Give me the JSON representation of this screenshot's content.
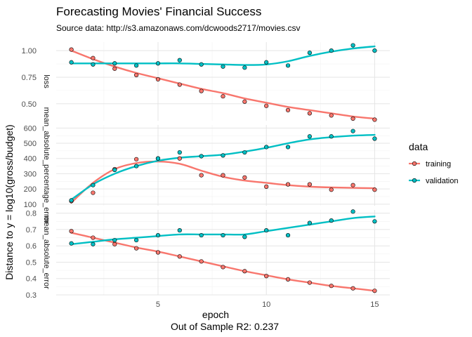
{
  "chart_data": {
    "type": "line",
    "title": "Forecasting Movies' Financial Success",
    "subtitle": "Source data: http://s3.amazonaws.com/dcwoods2717/movies.csv",
    "xlabel": "epoch",
    "caption": "Out of Sample R2: 0.237",
    "ylabel": "Distance to y = log10(gross/budget)",
    "legend_title": "data",
    "legend_position": "right",
    "grid": true,
    "colors": {
      "training": "#F8766D",
      "validation": "#00BFC4"
    },
    "x": [
      1,
      2,
      3,
      4,
      5,
      6,
      7,
      8,
      9,
      10,
      11,
      12,
      13,
      14,
      15
    ],
    "xlim": [
      0.3,
      15.7
    ],
    "xticks": [
      5,
      10,
      15
    ],
    "xtick_labels": [
      "5",
      "10",
      "15"
    ],
    "panels": [
      {
        "strip": "loss",
        "ylim": [
          0.34,
          1.08
        ],
        "yticks": [
          0.5,
          0.75,
          1.0
        ],
        "ytick_labels": [
          "0.50",
          "0.75",
          "1.00"
        ],
        "series": [
          {
            "name": "training",
            "values": [
              1.01,
              0.93,
              0.83,
              0.77,
              0.73,
              0.68,
              0.62,
              0.57,
              0.52,
              0.48,
              0.44,
              0.41,
              0.39,
              0.36,
              0.35
            ],
            "smooth": [
              1.0,
              0.92,
              0.85,
              0.79,
              0.74,
              0.69,
              0.64,
              0.6,
              0.55,
              0.51,
              0.47,
              0.44,
              0.41,
              0.38,
              0.36
            ]
          },
          {
            "name": "validation",
            "values": [
              0.89,
              0.87,
              0.88,
              0.86,
              0.88,
              0.91,
              0.87,
              0.85,
              0.84,
              0.89,
              0.86,
              0.98,
              1.0,
              1.05,
              1.0
            ],
            "smooth": [
              0.88,
              0.88,
              0.88,
              0.88,
              0.88,
              0.88,
              0.875,
              0.87,
              0.865,
              0.87,
              0.9,
              0.95,
              0.99,
              1.02,
              1.04
            ]
          }
        ]
      },
      {
        "strip": "mean_absolute_percentage_error",
        "ylim": [
          90,
          620
        ],
        "yticks": [
          100,
          200,
          300,
          400,
          500,
          600
        ],
        "ytick_labels": [
          "100",
          "200",
          "300",
          "400",
          "500",
          "600"
        ],
        "series": [
          {
            "name": "training",
            "values": [
              120,
              175,
              330,
              395,
              400,
              400,
              290,
              290,
              275,
              215,
              230,
              230,
              195,
              225,
              195
            ],
            "smooth": [
              110,
              240,
              330,
              370,
              380,
              365,
              320,
              280,
              255,
              240,
              225,
              215,
              210,
              207,
              205
            ]
          },
          {
            "name": "validation",
            "values": [
              125,
              225,
              325,
              350,
              400,
              440,
              415,
              420,
              440,
              475,
              475,
              545,
              545,
              580,
              530
            ],
            "smooth": [
              130,
              230,
              300,
              350,
              385,
              405,
              415,
              425,
              445,
              470,
              500,
              525,
              540,
              550,
              555
            ]
          }
        ]
      },
      {
        "strip": "mean_absolute_error",
        "ylim": [
          0.3,
          0.82
        ],
        "yticks": [
          0.3,
          0.4,
          0.5,
          0.6,
          0.7,
          0.8
        ],
        "ytick_labels": [
          "0.3",
          "0.4",
          "0.5",
          "0.6",
          "0.7",
          "0.8"
        ],
        "series": [
          {
            "name": "training",
            "values": [
              0.69,
              0.65,
              0.61,
              0.585,
              0.56,
              0.535,
              0.505,
              0.47,
              0.445,
              0.415,
              0.395,
              0.375,
              0.355,
              0.34,
              0.325
            ],
            "smooth": [
              0.68,
              0.65,
              0.62,
              0.59,
              0.565,
              0.535,
              0.505,
              0.475,
              0.445,
              0.42,
              0.395,
              0.375,
              0.355,
              0.34,
              0.325
            ]
          },
          {
            "name": "validation",
            "values": [
              0.615,
              0.61,
              0.635,
              0.635,
              0.665,
              0.695,
              0.665,
              0.665,
              0.655,
              0.695,
              0.665,
              0.74,
              0.755,
              0.81,
              0.75
            ],
            "smooth": [
              0.61,
              0.625,
              0.64,
              0.65,
              0.66,
              0.67,
              0.67,
              0.67,
              0.67,
              0.69,
              0.71,
              0.73,
              0.75,
              0.77,
              0.78
            ]
          }
        ]
      }
    ]
  }
}
